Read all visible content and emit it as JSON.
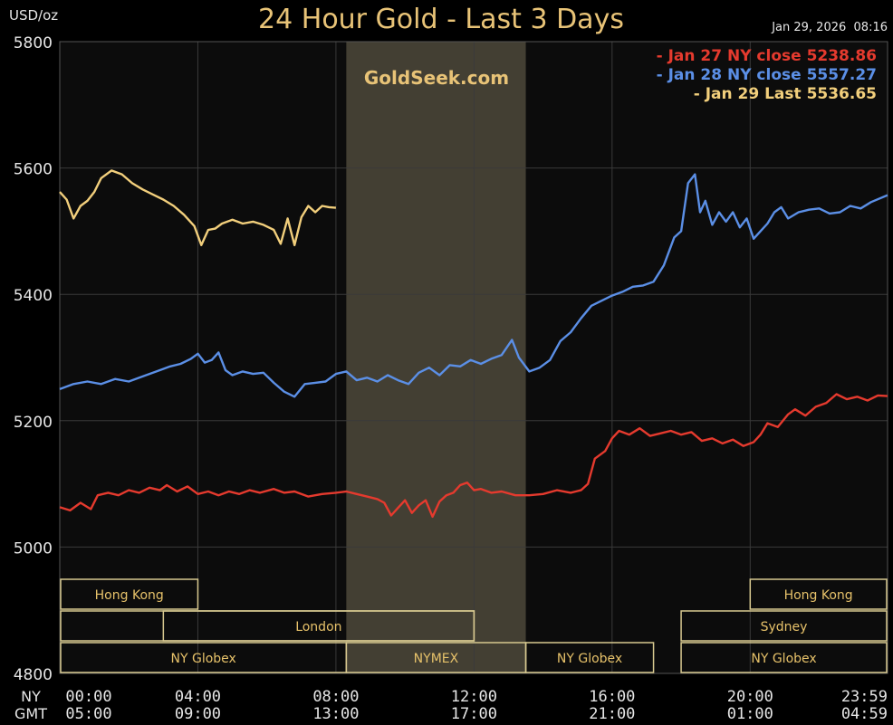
{
  "header": {
    "unit": "USD/oz",
    "title": "24 Hour Gold - Last 3 Days",
    "timestamp": "Jan 29, 2026  08:16",
    "watermark": "GoldSeek.com"
  },
  "colors": {
    "background": "#0c0c0c",
    "grid": "#3a3a3a",
    "axis_text": "#e6e6e6",
    "title": "#e8c377",
    "jan27": "#e53a2e",
    "jan28": "#5b8fe6",
    "jan29": "#f2cf7c",
    "session_fill": "#433f33",
    "market_border": "#d8c990",
    "market_text": "#e7c26a"
  },
  "chart_data": {
    "type": "line",
    "title": "24 Hour Gold - Last 3 Days",
    "ylabel": "USD/oz",
    "xlabel": "",
    "x_unit": "hours since 00:00 NY",
    "ylim": [
      4800,
      5800
    ],
    "xlim": [
      0,
      23.98
    ],
    "y_ticks": [
      4800,
      5000,
      5200,
      5400,
      5600,
      5800
    ],
    "x_ticks": [
      {
        "x": 0,
        "ny": "00:00",
        "gmt": "05:00"
      },
      {
        "x": 4,
        "ny": "04:00",
        "gmt": "09:00"
      },
      {
        "x": 8,
        "ny": "08:00",
        "gmt": "13:00"
      },
      {
        "x": 12,
        "ny": "12:00",
        "gmt": "17:00"
      },
      {
        "x": 16,
        "ny": "16:00",
        "gmt": "21:00"
      },
      {
        "x": 20,
        "ny": "20:00",
        "gmt": "01:00"
      },
      {
        "x": 23.98,
        "ny": "23:59",
        "gmt": "04:59"
      }
    ],
    "row_labels": {
      "ny": "NY",
      "gmt": "GMT"
    },
    "grid": true,
    "legend_position": "top-right",
    "shaded_session": {
      "x0": 8.3,
      "x1": 13.5
    },
    "series": [
      {
        "name": "Jan 27 NY close 5238.86",
        "color": "#e53a2e",
        "x": [
          0,
          0.3,
          0.6,
          0.9,
          1.1,
          1.4,
          1.7,
          2.0,
          2.3,
          2.6,
          2.9,
          3.1,
          3.4,
          3.7,
          4.0,
          4.3,
          4.6,
          4.9,
          5.2,
          5.5,
          5.8,
          6.2,
          6.5,
          6.8,
          7.2,
          7.6,
          8.0,
          8.3,
          8.6,
          8.9,
          9.2,
          9.4,
          9.6,
          9.8,
          10.0,
          10.2,
          10.4,
          10.6,
          10.8,
          11.0,
          11.2,
          11.4,
          11.6,
          11.8,
          12.0,
          12.2,
          12.5,
          12.8,
          13.2,
          13.6,
          14.0,
          14.4,
          14.8,
          15.1,
          15.3,
          15.5,
          15.8,
          16.0,
          16.2,
          16.5,
          16.8,
          17.1,
          17.4,
          17.7,
          18.0,
          18.3,
          18.6,
          18.9,
          19.2,
          19.5,
          19.8,
          20.1,
          20.3,
          20.5,
          20.8,
          21.1,
          21.3,
          21.6,
          21.9,
          22.2,
          22.5,
          22.8,
          23.1,
          23.4,
          23.7,
          23.98
        ],
        "y": [
          5063,
          5058,
          5070,
          5060,
          5082,
          5086,
          5082,
          5090,
          5086,
          5094,
          5090,
          5098,
          5088,
          5096,
          5084,
          5088,
          5082,
          5088,
          5084,
          5090,
          5086,
          5092,
          5086,
          5088,
          5080,
          5084,
          5086,
          5088,
          5084,
          5080,
          5076,
          5070,
          5050,
          5062,
          5074,
          5054,
          5066,
          5074,
          5048,
          5072,
          5082,
          5086,
          5098,
          5102,
          5090,
          5092,
          5086,
          5088,
          5082,
          5082,
          5084,
          5090,
          5086,
          5090,
          5100,
          5140,
          5152,
          5172,
          5184,
          5178,
          5188,
          5176,
          5180,
          5184,
          5178,
          5182,
          5168,
          5172,
          5164,
          5170,
          5160,
          5166,
          5178,
          5196,
          5190,
          5210,
          5218,
          5208,
          5222,
          5228,
          5242,
          5234,
          5238,
          5232,
          5240,
          5239
        ]
      },
      {
        "name": "Jan 28 NY close 5557.27",
        "color": "#5b8fe6",
        "x": [
          0,
          0.4,
          0.8,
          1.2,
          1.6,
          2.0,
          2.4,
          2.8,
          3.2,
          3.5,
          3.8,
          4.0,
          4.2,
          4.4,
          4.6,
          4.8,
          5.0,
          5.3,
          5.6,
          5.9,
          6.2,
          6.5,
          6.8,
          7.1,
          7.4,
          7.7,
          8.0,
          8.3,
          8.6,
          8.9,
          9.2,
          9.5,
          9.8,
          10.1,
          10.4,
          10.7,
          11.0,
          11.3,
          11.6,
          11.9,
          12.2,
          12.5,
          12.8,
          13.1,
          13.3,
          13.6,
          13.9,
          14.2,
          14.5,
          14.8,
          15.1,
          15.4,
          15.7,
          16.0,
          16.3,
          16.6,
          16.9,
          17.2,
          17.5,
          17.8,
          18.0,
          18.2,
          18.4,
          18.55,
          18.7,
          18.9,
          19.1,
          19.3,
          19.5,
          19.7,
          19.9,
          20.1,
          20.3,
          20.5,
          20.7,
          20.9,
          21.1,
          21.4,
          21.7,
          22.0,
          22.3,
          22.6,
          22.9,
          23.2,
          23.5,
          23.98
        ],
        "y": [
          5250,
          5258,
          5262,
          5258,
          5266,
          5262,
          5270,
          5278,
          5286,
          5290,
          5298,
          5306,
          5292,
          5296,
          5308,
          5280,
          5272,
          5278,
          5274,
          5276,
          5260,
          5246,
          5238,
          5258,
          5260,
          5262,
          5274,
          5278,
          5264,
          5268,
          5262,
          5272,
          5264,
          5258,
          5276,
          5284,
          5272,
          5288,
          5286,
          5296,
          5290,
          5298,
          5304,
          5328,
          5300,
          5278,
          5284,
          5296,
          5326,
          5340,
          5362,
          5382,
          5390,
          5398,
          5404,
          5412,
          5414,
          5420,
          5446,
          5490,
          5500,
          5576,
          5590,
          5530,
          5548,
          5510,
          5530,
          5515,
          5530,
          5506,
          5520,
          5488,
          5500,
          5512,
          5530,
          5538,
          5520,
          5530,
          5534,
          5536,
          5528,
          5530,
          5540,
          5536,
          5546,
          5557
        ]
      },
      {
        "name": "Jan 29 Last 5536.65",
        "color": "#f2cf7c",
        "x": [
          0,
          0.2,
          0.4,
          0.6,
          0.8,
          1.0,
          1.2,
          1.5,
          1.8,
          2.1,
          2.4,
          2.7,
          3.0,
          3.3,
          3.6,
          3.9,
          4.1,
          4.3,
          4.5,
          4.7,
          5.0,
          5.3,
          5.6,
          5.9,
          6.2,
          6.4,
          6.6,
          6.8,
          7.0,
          7.2,
          7.4,
          7.6,
          7.8,
          8.0
        ],
        "y": [
          5562,
          5550,
          5520,
          5540,
          5548,
          5562,
          5584,
          5596,
          5590,
          5576,
          5566,
          5558,
          5550,
          5540,
          5526,
          5508,
          5478,
          5502,
          5504,
          5512,
          5518,
          5512,
          5515,
          5510,
          5502,
          5480,
          5520,
          5478,
          5522,
          5540,
          5530,
          5540,
          5538,
          5537
        ]
      }
    ],
    "markets": [
      {
        "label": "Hong Kong",
        "x0": 0,
        "x1": 4.0,
        "row": 0
      },
      {
        "label": "Hong Kong",
        "x0": 20.0,
        "x1": 23.98,
        "row": 0
      },
      {
        "label": "London",
        "x0": 0,
        "x1": 12.0,
        "row": 1,
        "label_x0": 3.0
      },
      {
        "label": "Sydney",
        "x0": 18.0,
        "x1": 23.98,
        "row": 1
      },
      {
        "label": "NY Globex",
        "x0": 0,
        "x1": 8.3,
        "row": 2
      },
      {
        "label": "NYMEX",
        "x0": 8.3,
        "x1": 13.5,
        "row": 2
      },
      {
        "label": "NY Globex",
        "x0": 13.5,
        "x1": 17.2,
        "row": 2
      },
      {
        "label": "NY Globex",
        "x0": 18.0,
        "x1": 23.98,
        "row": 2
      }
    ]
  }
}
